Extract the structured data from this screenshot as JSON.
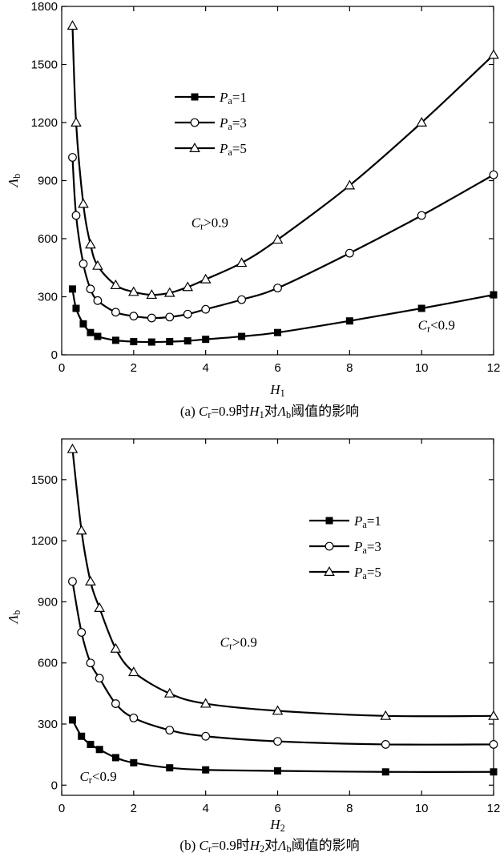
{
  "chart_data": [
    {
      "type": "line",
      "title": "",
      "caption": {
        "prefix": "(a) ",
        "var1": "C",
        "var1_sub": "r",
        "mid1": "=0.9时",
        "var2": "H",
        "var2_sub": "1",
        "mid2": "对",
        "var3": "Λ",
        "var3_sub": "b",
        "suffix": "阈值的影响"
      },
      "xlabel": {
        "var": "H",
        "sub": "1"
      },
      "ylabel": {
        "var": "Λ",
        "sub": "b"
      },
      "xlim": [
        0,
        12
      ],
      "ylim": [
        0,
        1800
      ],
      "xticks": [
        0,
        2,
        4,
        6,
        8,
        10,
        12
      ],
      "xtick_labels": [
        "0",
        "2",
        "4",
        "6",
        "8",
        "10",
        "12"
      ],
      "yticks": [
        0,
        300,
        600,
        900,
        1200,
        1500,
        1800
      ],
      "ytick_labels": [
        "0",
        "300",
        "600",
        "900",
        "1200",
        "1500",
        "1800"
      ],
      "grid": false,
      "legend_position": "upper-left",
      "annotations": [
        {
          "var": "C",
          "sub": "r",
          "text": ">0.9",
          "x": 3.6,
          "y": 660
        },
        {
          "var": "C",
          "sub": "r",
          "text": "<0.9",
          "x": 9.9,
          "y": 130
        }
      ],
      "series": [
        {
          "name_var": "P",
          "name_sub": "a",
          "name_text": "=1",
          "marker": "square-filled",
          "x": [
            0.3,
            0.4,
            0.6,
            0.8,
            1.0,
            1.5,
            2.0,
            2.5,
            3.0,
            3.5,
            4.0,
            5.0,
            6.0,
            8.0,
            10.0,
            12.0
          ],
          "y": [
            340,
            240,
            160,
            115,
            95,
            75,
            68,
            66,
            68,
            72,
            80,
            95,
            115,
            175,
            240,
            310
          ]
        },
        {
          "name_var": "P",
          "name_sub": "a",
          "name_text": "=3",
          "marker": "circle-open",
          "x": [
            0.3,
            0.4,
            0.6,
            0.8,
            1.0,
            1.5,
            2.0,
            2.5,
            3.0,
            3.5,
            4.0,
            5.0,
            6.0,
            8.0,
            10.0,
            12.0
          ],
          "y": [
            1020,
            720,
            470,
            340,
            280,
            220,
            200,
            190,
            195,
            210,
            235,
            285,
            345,
            525,
            720,
            930
          ]
        },
        {
          "name_var": "P",
          "name_sub": "a",
          "name_text": "=5",
          "marker": "triangle-open",
          "x": [
            0.3,
            0.4,
            0.6,
            0.8,
            1.0,
            1.5,
            2.0,
            2.5,
            3.0,
            3.5,
            4.0,
            5.0,
            6.0,
            8.0,
            10.0,
            12.0
          ],
          "y": [
            1700,
            1200,
            780,
            570,
            460,
            360,
            325,
            310,
            320,
            350,
            390,
            475,
            595,
            875,
            1200,
            1550
          ]
        }
      ]
    },
    {
      "type": "line",
      "title": "",
      "caption": {
        "prefix": "(b) ",
        "var1": "C",
        "var1_sub": "r",
        "mid1": "=0.9时",
        "var2": "H",
        "var2_sub": "2",
        "mid2": "对",
        "var3": "Λ",
        "var3_sub": "b",
        "suffix": "阈值的影响"
      },
      "xlabel": {
        "var": "H",
        "sub": "2"
      },
      "ylabel": {
        "var": "Λ",
        "sub": "b"
      },
      "xlim": [
        0,
        12
      ],
      "ylim": [
        -50,
        1700
      ],
      "xticks": [
        0,
        2,
        4,
        6,
        8,
        10,
        12
      ],
      "xtick_labels": [
        "0",
        "2",
        "4",
        "6",
        "8",
        "10",
        "12"
      ],
      "yticks": [
        0,
        300,
        600,
        900,
        1200,
        1500
      ],
      "ytick_labels": [
        "0",
        "300",
        "600",
        "900",
        "1200",
        "1500"
      ],
      "grid": false,
      "legend_position": "upper-right",
      "annotations": [
        {
          "var": "C",
          "sub": "r",
          "text": ">0.9",
          "x": 4.4,
          "y": 680
        },
        {
          "var": "C",
          "sub": "r",
          "text": "<0.9",
          "x": 0.5,
          "y": 20
        }
      ],
      "series": [
        {
          "name_var": "P",
          "name_sub": "a",
          "name_text": "=1",
          "marker": "square-filled",
          "x": [
            0.3,
            0.55,
            0.8,
            1.05,
            1.5,
            2.0,
            3.0,
            4.0,
            6.0,
            9.0,
            12.0
          ],
          "y": [
            320,
            240,
            200,
            175,
            135,
            110,
            85,
            75,
            70,
            65,
            65
          ]
        },
        {
          "name_var": "P",
          "name_sub": "a",
          "name_text": "=3",
          "marker": "circle-open",
          "x": [
            0.3,
            0.55,
            0.8,
            1.05,
            1.5,
            2.0,
            3.0,
            4.0,
            6.0,
            9.0,
            12.0
          ],
          "y": [
            1000,
            750,
            600,
            525,
            400,
            330,
            270,
            240,
            215,
            200,
            200
          ]
        },
        {
          "name_var": "P",
          "name_sub": "a",
          "name_text": "=5",
          "marker": "triangle-open",
          "x": [
            0.3,
            0.55,
            0.8,
            1.05,
            1.5,
            2.0,
            3.0,
            4.0,
            6.0,
            9.0,
            12.0
          ],
          "y": [
            1650,
            1250,
            1000,
            870,
            670,
            555,
            450,
            400,
            365,
            340,
            340
          ]
        }
      ]
    }
  ]
}
